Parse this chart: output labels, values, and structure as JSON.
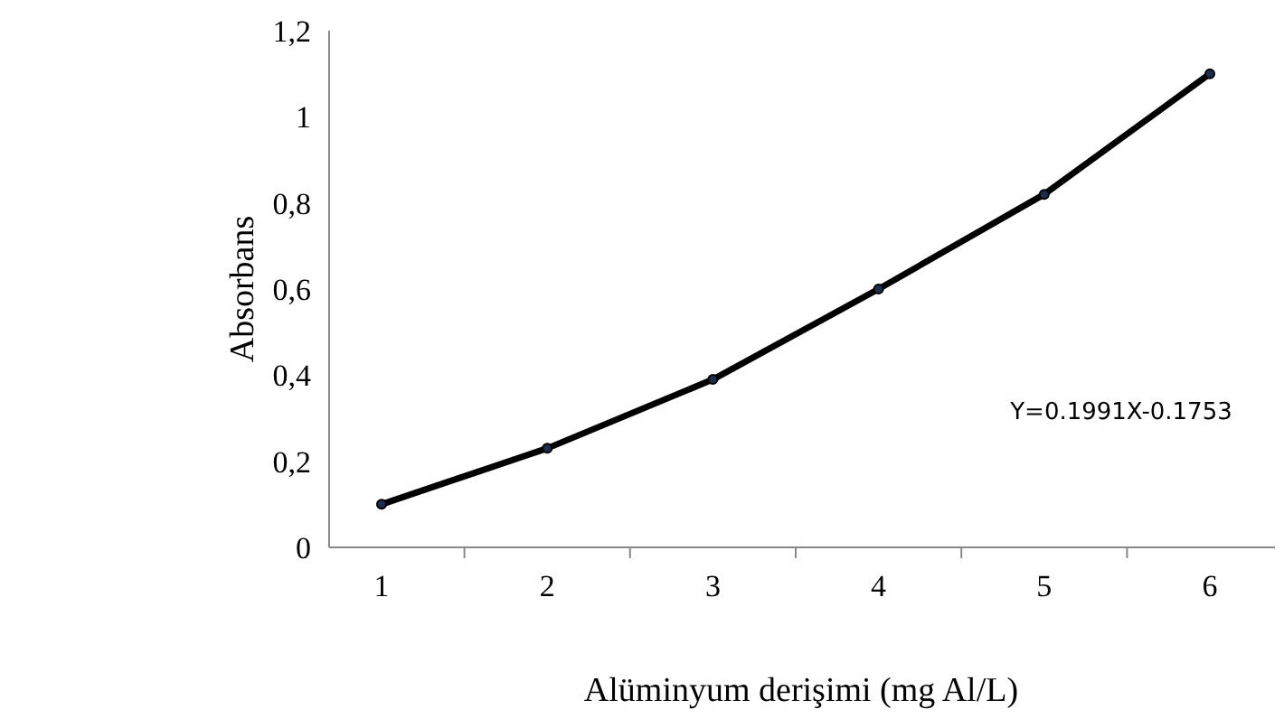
{
  "chart_data": {
    "type": "line",
    "xlabel": "Alüminyum derişimi (mg Al/L)",
    "ylabel": "Absorbans",
    "categories": [
      "1",
      "2",
      "3",
      "4",
      "5",
      "6"
    ],
    "series": [
      {
        "color": "#000000",
        "values": [
          0.1,
          0.23,
          0.39,
          0.6,
          0.82,
          1.1
        ]
      }
    ],
    "ylim": [
      0,
      1.2
    ],
    "yticks": [
      0,
      {
        "value": 0.2,
        "label": "0,2"
      },
      {
        "value": 0.4,
        "label": "0,4"
      },
      {
        "value": 0.6,
        "label": "0,6"
      },
      {
        "value": 0.8,
        "label": "0,8"
      },
      1,
      {
        "value": 1.2,
        "label": "1,2"
      }
    ],
    "annotations": [
      "Y=0.1991X-0.1753"
    ],
    "marker": "circle",
    "line_style": "solid",
    "grid": false
  }
}
